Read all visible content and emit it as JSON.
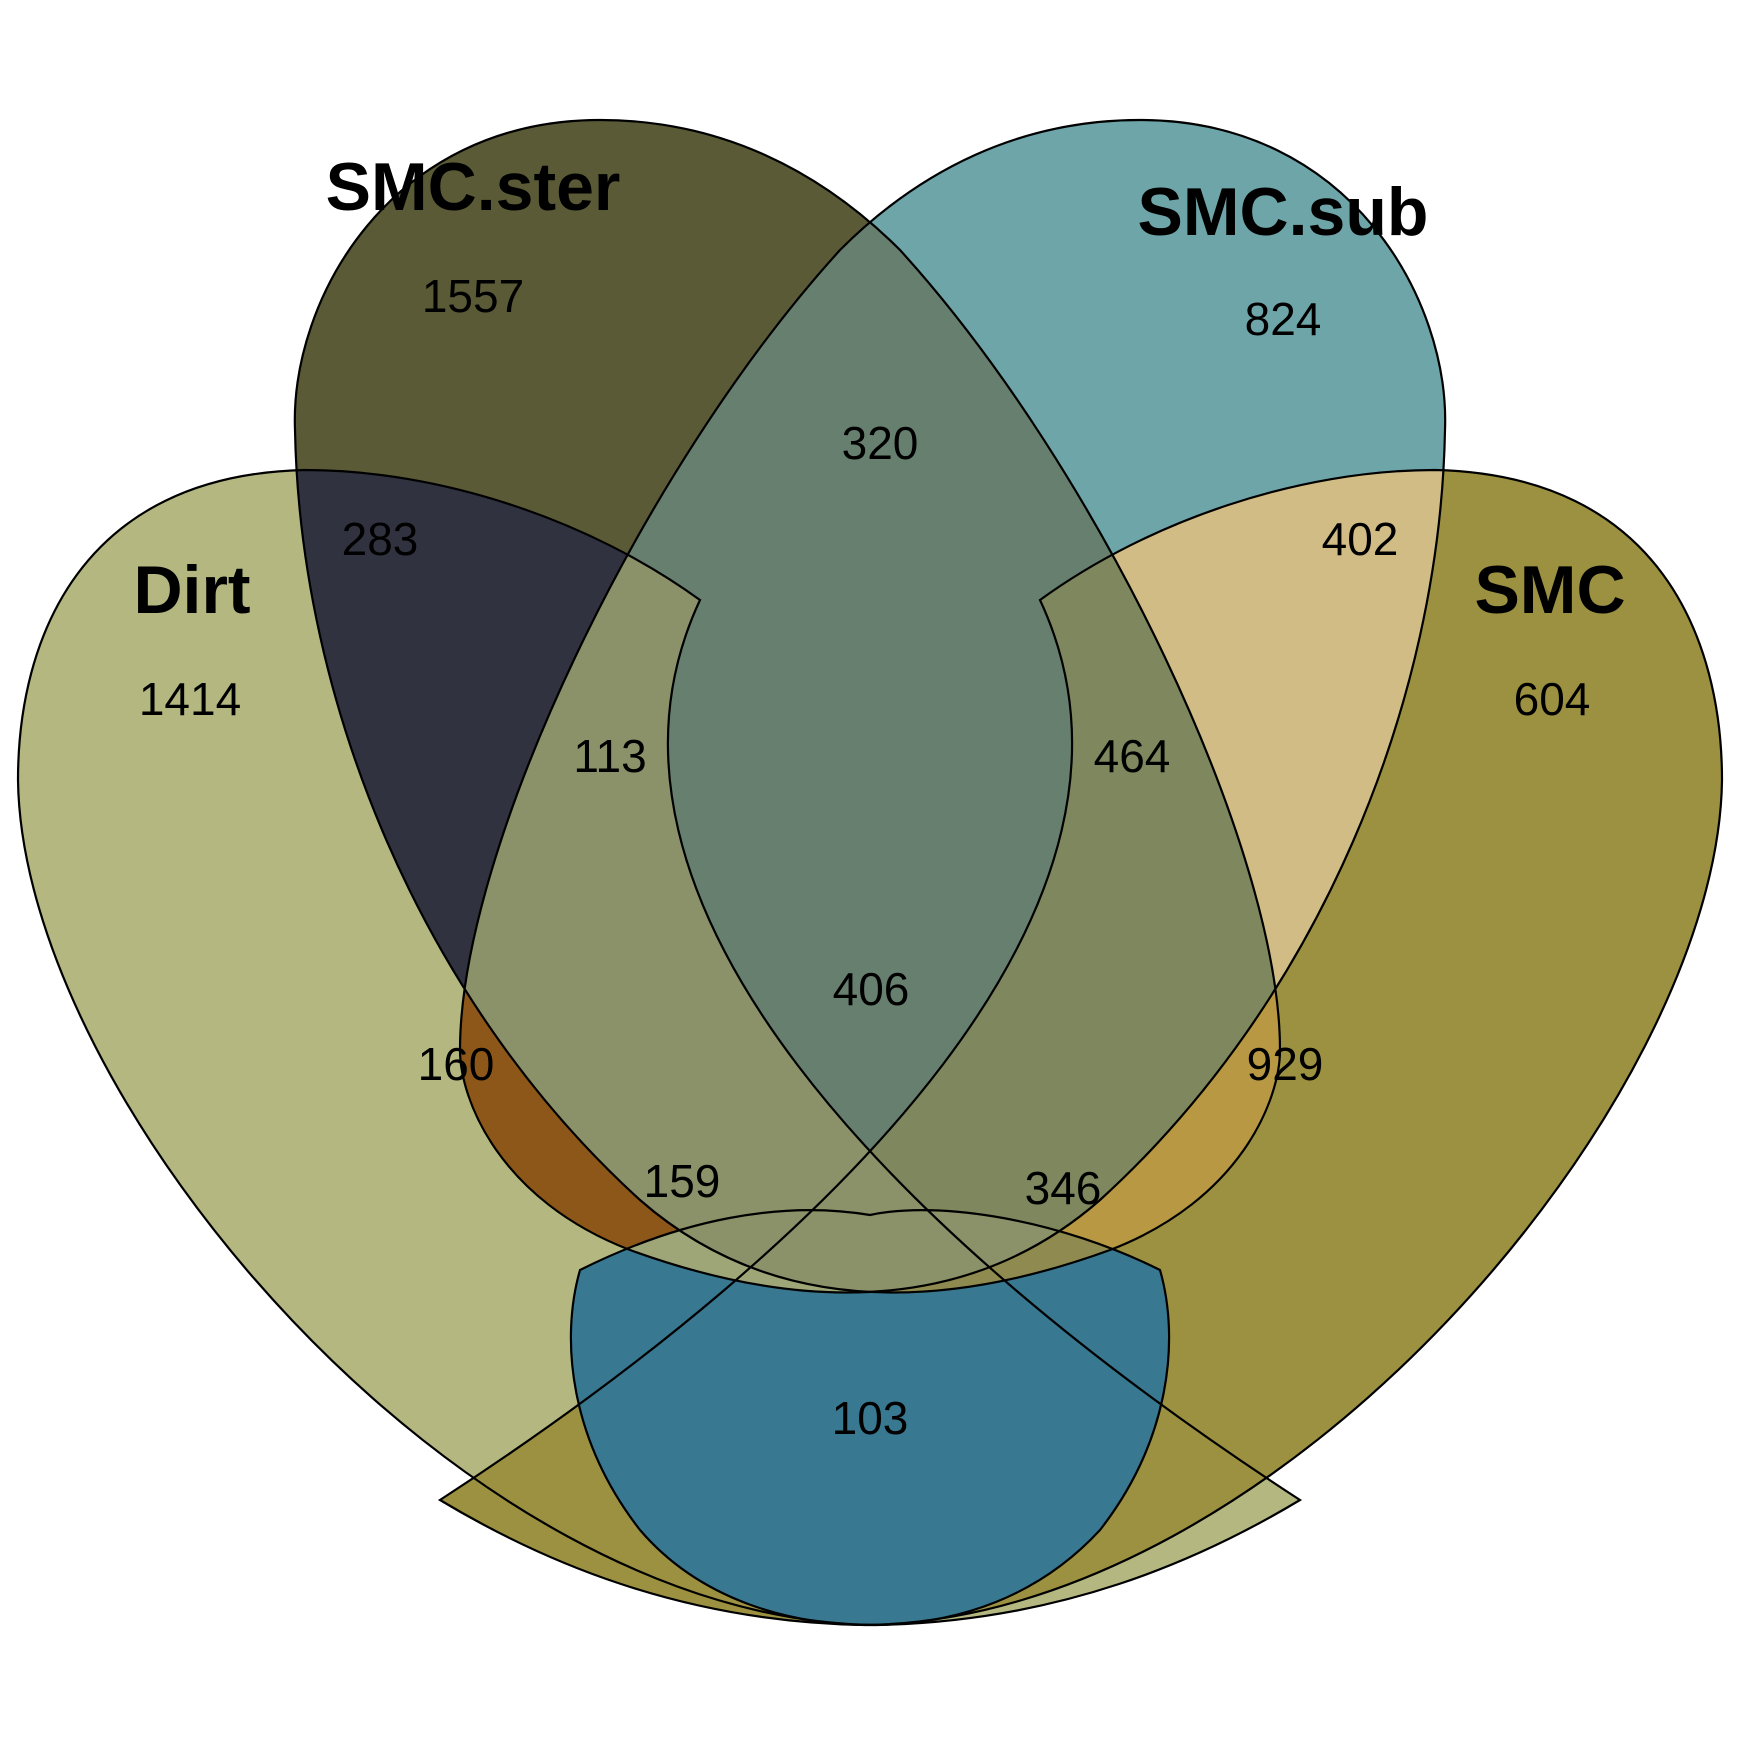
{
  "sets": {
    "dirt": {
      "label": "Dirt",
      "color": "#b4b880"
    },
    "smc_ster": {
      "label": "SMC.ster",
      "color": "#5a5a36"
    },
    "smc_sub": {
      "label": "SMC.sub",
      "color": "#6ea5a9"
    },
    "smc": {
      "label": "SMC",
      "color": "#9c9140"
    }
  },
  "regions": {
    "dirt_only": {
      "count": "1414",
      "color": "#b4b880"
    },
    "smc_ster_only": {
      "count": "1557",
      "color": "#5a5a36"
    },
    "smc_sub_only": {
      "count": "824",
      "color": "#6ea5a9"
    },
    "smc_only": {
      "count": "604",
      "color": "#9c9140"
    },
    "dirt_smc_ster": {
      "count": "283",
      "color": "#30333f"
    },
    "smc_ster_smc_sub": {
      "count": "320",
      "color": "#677f6f"
    },
    "smc_sub_smc": {
      "count": "402",
      "color": "#d1bc86"
    },
    "dirt_smc_ster_smc_sub": {
      "count": "113",
      "color": "#849474"
    },
    "smc_ster_smc_sub_smc": {
      "count": "464",
      "color": "#7e875e"
    },
    "dirt_smc_sub": {
      "count": "160",
      "color": "#8d5719"
    },
    "all_four": {
      "count": "406",
      "color": "#8b9168"
    },
    "smc_ster_smc": {
      "count": "929",
      "color": "#b99844"
    },
    "dirt_smc_sub_smc": {
      "count": "159",
      "color": "#9ea678"
    },
    "dirt_smc_ster_smc": {
      "count": "346",
      "color": "#8f8a4f"
    },
    "dirt_smc": {
      "count": "103",
      "color": "#387891"
    }
  }
}
